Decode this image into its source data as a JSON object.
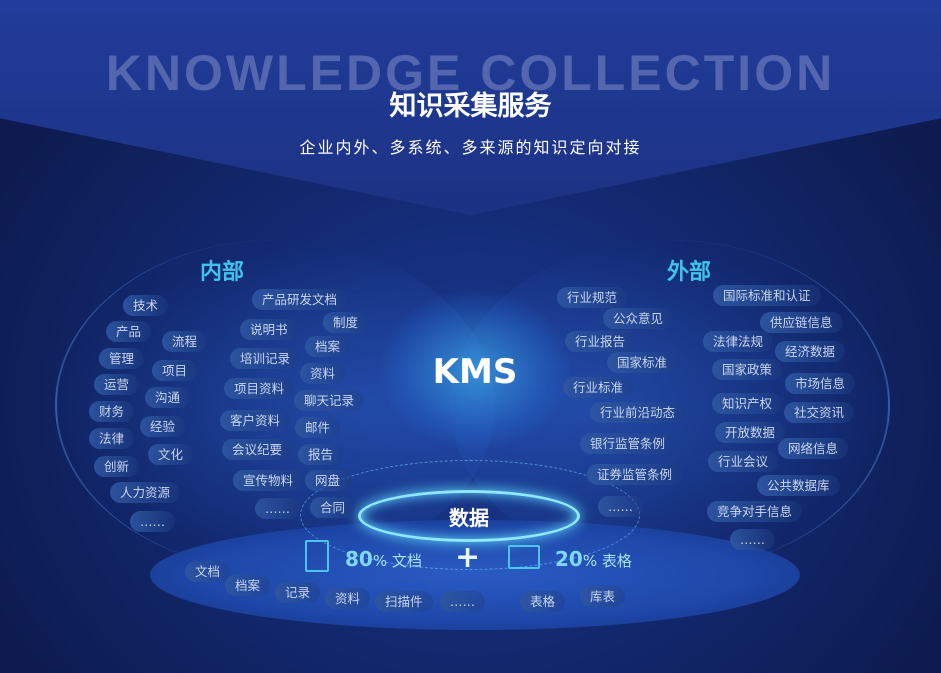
{
  "header": {
    "watermark": "KNOWLEDGE COLLECTION",
    "title": "知识采集服务",
    "subtitle": "企业内外、多系统、多来源的知识定向对接"
  },
  "sections": {
    "internal": "内部",
    "external": "外部"
  },
  "center": {
    "label": "KMS",
    "data_label": "数据"
  },
  "stats": [
    {
      "value": "80",
      "unit": "%",
      "label": "文档",
      "icon": "document-icon"
    },
    {
      "value": "20",
      "unit": "%",
      "label": "表格",
      "icon": "table-chart-icon"
    }
  ],
  "plus": "+",
  "internal_outer": [
    "技术",
    "产品",
    "流程",
    "管理",
    "项目",
    "运营",
    "沟通",
    "财务",
    "经验",
    "法律",
    "文化",
    "创新",
    "人力资源",
    "……"
  ],
  "internal_inner": [
    "产品研发文档",
    "说明书",
    "制度",
    "培训记录",
    "档案",
    "资料",
    "项目资料",
    "聊天记录",
    "客户资料",
    "邮件",
    "会议纪要",
    "报告",
    "宣传物料",
    "网盘",
    "……",
    "合同"
  ],
  "external_inner": [
    "行业规范",
    "公众意见",
    "行业报告",
    "国家标准",
    "行业标准",
    "行业前沿动态",
    "银行监管条例",
    "证券监管条例",
    "……"
  ],
  "external_outer": [
    "国际标准和认证",
    "供应链信息",
    "法律法规",
    "经济数据",
    "国家政策",
    "市场信息",
    "知识产权",
    "社交资讯",
    "开放数据",
    "网络信息",
    "行业会议",
    "公共数据库",
    "竞争对手信息",
    "……"
  ],
  "bottom": [
    "文档",
    "档案",
    "记录",
    "资料",
    "扫描件",
    "……",
    "表格",
    "库表"
  ],
  "colors": {
    "accent": "#3fc3ea",
    "background": "#132a72"
  }
}
